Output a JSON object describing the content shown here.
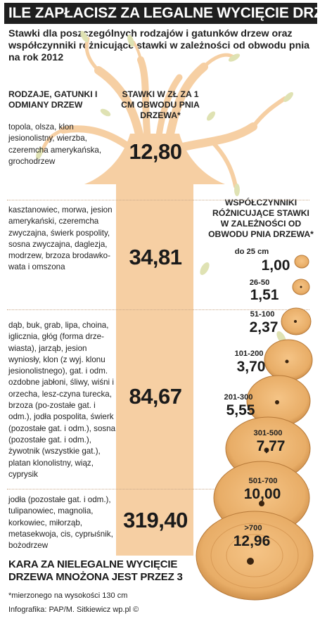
{
  "title": "ILE ZAPŁACISZ ZA LEGALNE WYCIĘCIE DRZEWA",
  "subtitle": "Stawki dla poszczególnych rodzajów i gatunków drzew oraz współczynniki różnicujące stawki w zależności od obwodu pnia na rok 2012",
  "col_species_header": "RODZAJE, GATUNKI I ODMIANY DRZEW",
  "col_rate_header": "STAWKI W ZŁ ZA 1 CM OBWODU PNIA DRZEWA*",
  "col_coef_header": "WSPÓŁCZYNNIKI RÓŻNICUJĄCE STAWKI W ZALEŻNOŚCI OD OBWODU PNIA DRZEWA*",
  "groups": [
    {
      "species": "topola, olsza, klon jesionolistny, wierzba, czeremcha amerykańska, grochodrzew",
      "rate": "12,80"
    },
    {
      "species": "kasztanowiec, morwa, jesion amerykański, czeremcha zwyczajna, świerk pospolity, sosna zwyczajna, daglezja, modrzew, brzoza brodawko-wata i omszona",
      "rate": "34,81"
    },
    {
      "species": "dąb, buk, grab, lipa, choina, iglicznia, głóg (forma drze-wiasta), jarząb, jesion wyniosły, klon (z wyj. klonu jesionolistnego), gat. i odm. ozdobne jabłoni, śliwy, wiśni i orzecha, lesz-czyna turecka, brzoza (po-zostałe gat. i odm.), jodła pospolita, świerk (pozostałe gat. i odm.), sosna (pozostałe gat. i odm.), żywotnik (wszystkie gat.), platan klonolistny, wiąz, cyprysik",
      "rate": "84,67"
    },
    {
      "species": "jodła (pozostałe gat. i odm.), tulipanowiec, magnolia, korkowiec, miłorząb, metasekwoja, cis, cyprыśnik, bożodrzew",
      "rate": "319,40"
    }
  ],
  "coefficients": [
    {
      "range": "do 25 cm",
      "value": "1,00"
    },
    {
      "range": "26-50",
      "value": "1,51"
    },
    {
      "range": "51-100",
      "value": "2,37"
    },
    {
      "range": "101-200",
      "value": "3,70"
    },
    {
      "range": "201-300",
      "value": "5,55"
    },
    {
      "range": "301-500",
      "value": "7,77"
    },
    {
      "range": "501-700",
      "value": "10,00"
    },
    {
      "range": ">700",
      "value": "12,96"
    }
  ],
  "penalty": "KARA ZA NIELEGALNE WYCIĘCIE DRZEWA MNOŻONA JEST PRZEZ 3",
  "footnote": "*mierzonego na wysokości 130 cm",
  "credit": "Infografika: PAP/M. Sitkiewicz wp.pl ©",
  "colors": {
    "trunk": "#f6cfa3",
    "leaf": "#dfe2b3",
    "wood": "#e8ad67",
    "wood_dark": "#b77a3a",
    "title_bg": "#1f1f1f"
  }
}
